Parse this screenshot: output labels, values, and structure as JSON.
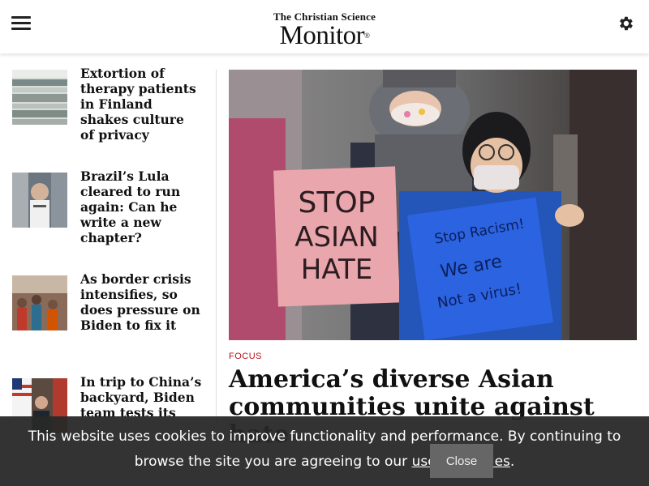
{
  "header": {
    "logo_top": "The Christian Science",
    "logo_main": "Monitor",
    "logo_reg": "®"
  },
  "sidebar": {
    "stories": [
      {
        "title": "Extortion of therapy patients in Finland shakes culture of privacy"
      },
      {
        "title": "Brazil’s Lula cleared to run again: Can he write a new chapter?"
      },
      {
        "title": "As border crisis intensifies, so does pressure on Biden to fix it"
      },
      {
        "title": "In trip to China’s backyard, Biden team tests its"
      }
    ]
  },
  "main": {
    "kicker": "FOCUS",
    "headline": "America’s diverse Asian communities unite against hate",
    "sign_left": [
      "STOP",
      "ASIAN",
      "HATE"
    ],
    "sign_right": [
      "Stop Racism!",
      "We are",
      "Not a virus!"
    ]
  },
  "cookie_banner": {
    "text_before": "This website uses cookies to improve functionality and performance. By continuing to browse the site you are agreeing to our ",
    "link_text": "use of cookies",
    "text_after": ".",
    "close_label": "Close"
  }
}
